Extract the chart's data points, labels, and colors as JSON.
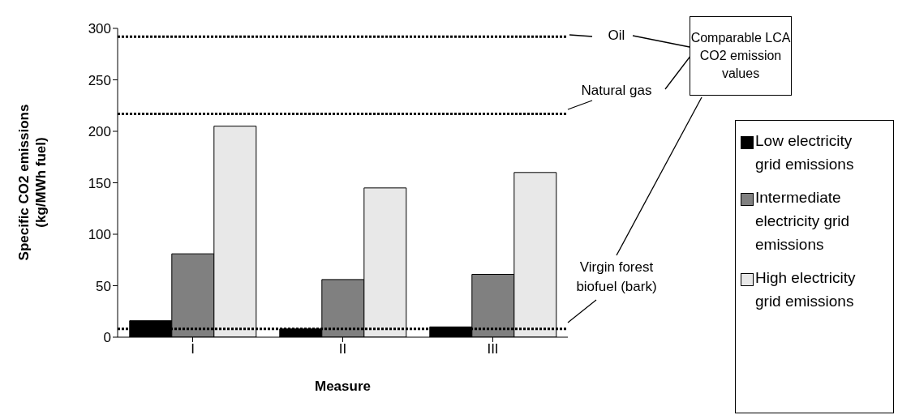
{
  "chart_data": {
    "type": "bar",
    "xlabel": "Measure",
    "ylabel": "Specific CO2 emissions (kg/MWh fuel)",
    "categories": [
      "I",
      "II",
      "III"
    ],
    "series": [
      {
        "name": "Low electricity grid emissions",
        "color": "#000000",
        "values": [
          16,
          8,
          10
        ]
      },
      {
        "name": "Intermediate electricity grid emissions",
        "color": "#808080",
        "values": [
          81,
          56,
          61
        ]
      },
      {
        "name": "High electricity grid emissions",
        "color": "#e8e8e8",
        "values": [
          205,
          145,
          160
        ]
      }
    ],
    "ylim": [
      0,
      300
    ],
    "yticks": [
      0,
      50,
      100,
      150,
      200,
      250,
      300
    ],
    "grid": false,
    "legend": "right",
    "ref_lines": [
      {
        "axis": "y",
        "value": 292,
        "label": "Oil",
        "color": "#000000",
        "line_style": "dotted"
      },
      {
        "axis": "y",
        "value": 217,
        "label": "Natural gas",
        "color": "#000000",
        "line_style": "dotted"
      },
      {
        "axis": "y",
        "value": 8,
        "label": "Virgin forest biofuel (bark)",
        "color": "#000000",
        "line_style": "dotted"
      }
    ],
    "annotations": [
      "Comparable LCA CO2 emission values"
    ]
  }
}
